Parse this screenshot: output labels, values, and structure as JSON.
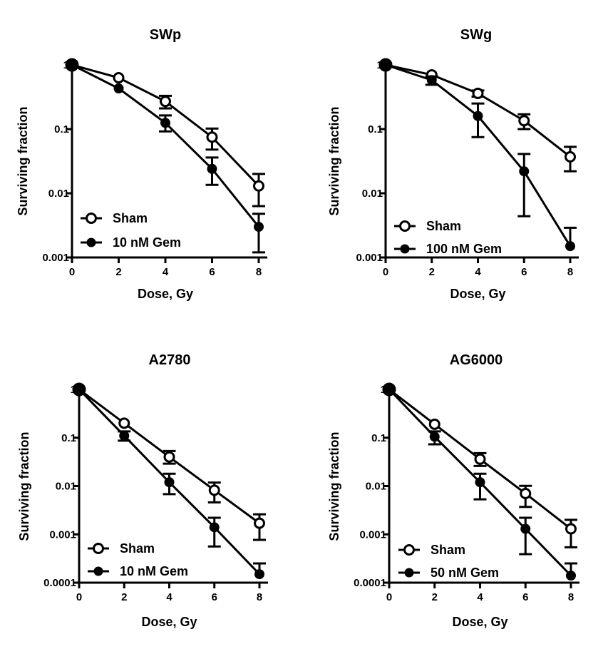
{
  "chart_data": [
    {
      "type": "line",
      "title": "SWp",
      "xlabel": "Dose, Gy",
      "ylabel": "Surviving fraction",
      "yscale": "log",
      "ylim": [
        0.001,
        1
      ],
      "xlim": [
        0,
        8
      ],
      "x_ticks": [
        "0",
        "2",
        "4",
        "6",
        "8"
      ],
      "y_ticks": [
        "0.001",
        "0.01",
        "0.1",
        "1"
      ],
      "legend_position": "bottom-left",
      "x": [
        0,
        2,
        4,
        6,
        8
      ],
      "series": [
        {
          "name": "Sham",
          "marker": "open-circle",
          "values": [
            1,
            0.63,
            0.27,
            0.075,
            0.013
          ],
          "err_low": [
            null,
            null,
            0.21,
            0.048,
            0.0063
          ],
          "err_high": [
            null,
            null,
            0.33,
            0.102,
            0.02
          ]
        },
        {
          "name": "10 nM Gem",
          "marker": "filled-circle",
          "values": [
            1,
            0.43,
            0.125,
            0.024,
            0.003
          ],
          "err_low": [
            null,
            null,
            0.092,
            0.0135,
            0.0012
          ],
          "err_high": [
            null,
            null,
            0.163,
            0.036,
            0.0048
          ]
        }
      ]
    },
    {
      "type": "line",
      "title": "SWg",
      "xlabel": "Dose, Gy",
      "ylabel": "Surviving fraction",
      "yscale": "log",
      "ylim": [
        0.001,
        1
      ],
      "xlim": [
        0,
        8
      ],
      "x_ticks": [
        "0",
        "2",
        "4",
        "6",
        "8"
      ],
      "y_ticks": [
        "0.001",
        "0.01",
        "0.1",
        "1"
      ],
      "legend_position": "bottom-left",
      "x": [
        0,
        2,
        4,
        6,
        8
      ],
      "series": [
        {
          "name": "Sham",
          "marker": "open-circle",
          "values": [
            1,
            0.7,
            0.36,
            0.135,
            0.037
          ],
          "err_low": [
            null,
            null,
            0.32,
            0.1,
            0.022
          ],
          "err_high": [
            null,
            null,
            0.4,
            0.17,
            0.053
          ]
        },
        {
          "name": "100 nM Gem",
          "marker": "filled-circle",
          "values": [
            1,
            0.58,
            0.16,
            0.022,
            0.0015
          ],
          "err_low": [
            null,
            0.49,
            0.075,
            0.0044,
            null
          ],
          "err_high": [
            null,
            0.66,
            0.25,
            0.041,
            0.0029
          ]
        }
      ]
    },
    {
      "type": "line",
      "title": "A2780",
      "xlabel": "Dose, Gy",
      "ylabel": "Surviving fraction",
      "yscale": "log",
      "ylim": [
        0.0001,
        1
      ],
      "xlim": [
        0,
        8
      ],
      "x_ticks": [
        "0",
        "2",
        "4",
        "6",
        "8"
      ],
      "y_ticks": [
        "0.0001",
        "0.001",
        "0.01",
        "0.1",
        "1"
      ],
      "legend_position": "bottom-left",
      "x": [
        0,
        2,
        4,
        6,
        8
      ],
      "series": [
        {
          "name": "Sham",
          "marker": "open-circle",
          "values": [
            1,
            0.2,
            0.04,
            0.0082,
            0.0017
          ],
          "err_low": [
            null,
            null,
            0.029,
            0.0046,
            0.00077
          ],
          "err_high": [
            null,
            null,
            0.053,
            0.0118,
            0.0026
          ]
        },
        {
          "name": "10 nM Gem",
          "marker": "filled-circle",
          "values": [
            1,
            0.11,
            0.012,
            0.0014,
            0.00015
          ],
          "err_low": [
            null,
            0.087,
            0.0068,
            0.00056,
            null
          ],
          "err_high": [
            null,
            0.135,
            0.018,
            0.0022,
            0.00025
          ]
        }
      ]
    },
    {
      "type": "line",
      "title": "AG6000",
      "xlabel": "Dose, Gy",
      "ylabel": "Surviving fraction",
      "yscale": "log",
      "ylim": [
        0.0001,
        1
      ],
      "xlim": [
        0,
        8
      ],
      "x_ticks": [
        "0",
        "2",
        "4",
        "6",
        "8"
      ],
      "y_ticks": [
        "0.0001",
        "0.001",
        "0.01",
        "0.1",
        "1"
      ],
      "legend_position": "bottom-left",
      "x": [
        0,
        2,
        4,
        6,
        8
      ],
      "series": [
        {
          "name": "Sham",
          "marker": "open-circle",
          "values": [
            1,
            0.19,
            0.036,
            0.007,
            0.0013
          ],
          "err_low": [
            null,
            null,
            0.026,
            0.0037,
            0.00054
          ],
          "err_high": [
            null,
            null,
            0.048,
            0.0101,
            0.002
          ]
        },
        {
          "name": "50 nM Gem",
          "marker": "filled-circle",
          "values": [
            1,
            0.105,
            0.012,
            0.0013,
            0.00014
          ],
          "err_low": [
            null,
            0.073,
            0.0053,
            0.00039,
            null
          ],
          "err_high": [
            null,
            0.135,
            0.018,
            0.0022,
            0.00025
          ]
        }
      ]
    }
  ]
}
